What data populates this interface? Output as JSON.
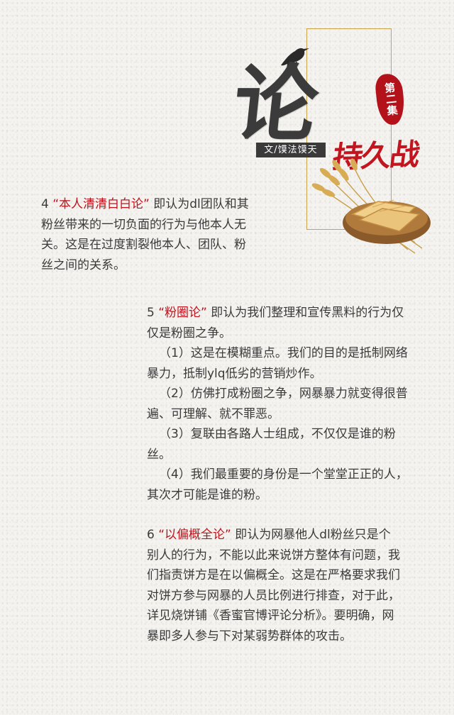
{
  "header": {
    "big_char": "论",
    "seal_text": "第二集",
    "author": "文/馍法馍天",
    "subtitle": "持久战"
  },
  "colors": {
    "accent_red": "#c1121c",
    "text": "#3a3a3a",
    "frame_gold": "#c9a24a"
  },
  "sections": {
    "s4": {
      "number": "4",
      "quote": "“本人清清白白论”",
      "body": "即认为dl团队和其粉丝带来的一切负面的行为与他本人无关。这是在过度割裂他本人、团队、粉丝之间的关系。"
    },
    "s5": {
      "number": "5",
      "quote": "“粉圈论”",
      "body": "即认为我们整理和宣传黑料的行为仅仅是粉圈之争。",
      "points": [
        "（1）这是在模糊重点。我们的目的是抵制网络暴力，抵制ylq低劣的营销炒作。",
        "（2）仿佛打成粉圈之争，网暴暴力就变得很普遍、可理解、就不罪恶。",
        "（3）复联由各路人士组成，不仅仅是谁的粉丝。",
        "（4）我们最重要的身份是一个堂堂正正的人，其次才可能是谁的粉。"
      ]
    },
    "s6": {
      "number": "6",
      "quote": "“以偏概全论”",
      "body": "即认为网暴他人dl粉丝只是个别人的行为，不能以此来说饼方整体有问题，我们指责饼方是在以偏概全。这是在严格要求我们对饼方参与网暴的人员比例进行排查，对于此，详见烧饼铺《香蜜官博评论分析》。要明确，网暴即多人参与下对某弱势群体的攻击。"
    }
  }
}
